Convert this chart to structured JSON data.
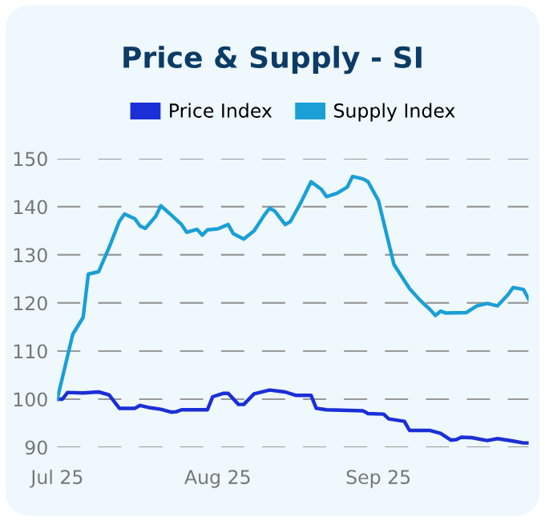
{
  "chart_data": {
    "type": "line",
    "title": "Price & Supply - SI",
    "legend": "top",
    "grid": "y",
    "line_style": "solid",
    "xlim": [
      "2025-07-01",
      "2025-09-30"
    ],
    "xticks": [
      {
        "value": "2025-07-01",
        "label": "Jul 25"
      },
      {
        "value": "2025-08-01",
        "label": "Aug 25"
      },
      {
        "value": "2025-09-01",
        "label": "Sep 25"
      }
    ],
    "ylim": [
      90,
      150
    ],
    "yticks": [
      90,
      100,
      110,
      120,
      130,
      140,
      150
    ],
    "series": [
      {
        "name": "Price Index",
        "color": "#1a2fd6",
        "x": [
          "2025-07-01",
          "2025-07-02",
          "2025-07-03",
          "2025-07-06",
          "2025-07-09",
          "2025-07-11",
          "2025-07-13",
          "2025-07-16",
          "2025-07-17",
          "2025-07-19",
          "2025-07-21",
          "2025-07-23",
          "2025-07-24",
          "2025-07-25",
          "2025-07-30",
          "2025-07-31",
          "2025-08-02",
          "2025-08-03",
          "2025-08-05",
          "2025-08-06",
          "2025-08-08",
          "2025-08-11",
          "2025-08-14",
          "2025-08-16",
          "2025-08-19",
          "2025-08-20",
          "2025-08-22",
          "2025-08-29",
          "2025-08-30",
          "2025-09-02",
          "2025-09-03",
          "2025-09-06",
          "2025-09-07",
          "2025-09-11",
          "2025-09-13",
          "2025-09-15",
          "2025-09-16",
          "2025-09-17",
          "2025-09-19",
          "2025-09-22",
          "2025-09-24",
          "2025-09-27",
          "2025-09-29",
          "2025-09-30"
        ],
        "values": [
          100,
          100,
          101.4,
          101.3,
          101.5,
          100.9,
          98.1,
          98.1,
          98.7,
          98.2,
          97.9,
          97.3,
          97.4,
          97.8,
          97.8,
          100.5,
          101.2,
          101.2,
          98.9,
          98.9,
          101.1,
          101.9,
          101.5,
          100.8,
          100.8,
          98.1,
          97.8,
          97.6,
          97,
          96.9,
          95.9,
          95.4,
          93.5,
          93.5,
          92.9,
          91.5,
          91.6,
          92.1,
          92,
          91.4,
          91.8,
          91.3,
          90.9,
          90.9
        ]
      },
      {
        "name": "Supply Index",
        "color": "#1a9fd6",
        "x": [
          "2025-07-01",
          "2025-07-04",
          "2025-07-06",
          "2025-07-07",
          "2025-07-09",
          "2025-07-11",
          "2025-07-13",
          "2025-07-14",
          "2025-07-16",
          "2025-07-17",
          "2025-07-18",
          "2025-07-20",
          "2025-07-21",
          "2025-07-23",
          "2025-07-25",
          "2025-07-26",
          "2025-07-28",
          "2025-07-29",
          "2025-07-30",
          "2025-08-01",
          "2025-08-03",
          "2025-08-04",
          "2025-08-06",
          "2025-08-08",
          "2025-08-10",
          "2025-08-11",
          "2025-08-12",
          "2025-08-14",
          "2025-08-15",
          "2025-08-17",
          "2025-08-19",
          "2025-08-21",
          "2025-08-22",
          "2025-08-24",
          "2025-08-26",
          "2025-08-27",
          "2025-08-29",
          "2025-08-30",
          "2025-09-01",
          "2025-09-04",
          "2025-09-07",
          "2025-09-09",
          "2025-09-11",
          "2025-09-12",
          "2025-09-13",
          "2025-09-14",
          "2025-09-18",
          "2025-09-20",
          "2025-09-22",
          "2025-09-24",
          "2025-09-26",
          "2025-09-27",
          "2025-09-29",
          "2025-09-30"
        ],
        "values": [
          100,
          113.5,
          117,
          126,
          126.5,
          131.5,
          137,
          138.5,
          137.5,
          136,
          135.5,
          138,
          140.2,
          138.3,
          136.3,
          134.7,
          135.3,
          134.1,
          135.2,
          135.4,
          136.3,
          134.4,
          133.3,
          135,
          138.3,
          139.7,
          139.1,
          136.3,
          136.9,
          140.8,
          145.2,
          143.6,
          142.1,
          142.8,
          144.1,
          146.3,
          145.8,
          145.2,
          141.3,
          128,
          123,
          120.6,
          118.6,
          117.4,
          118.3,
          117.9,
          118,
          119.4,
          119.9,
          119.4,
          121.7,
          123.2,
          122.8,
          120.8
        ]
      }
    ]
  }
}
